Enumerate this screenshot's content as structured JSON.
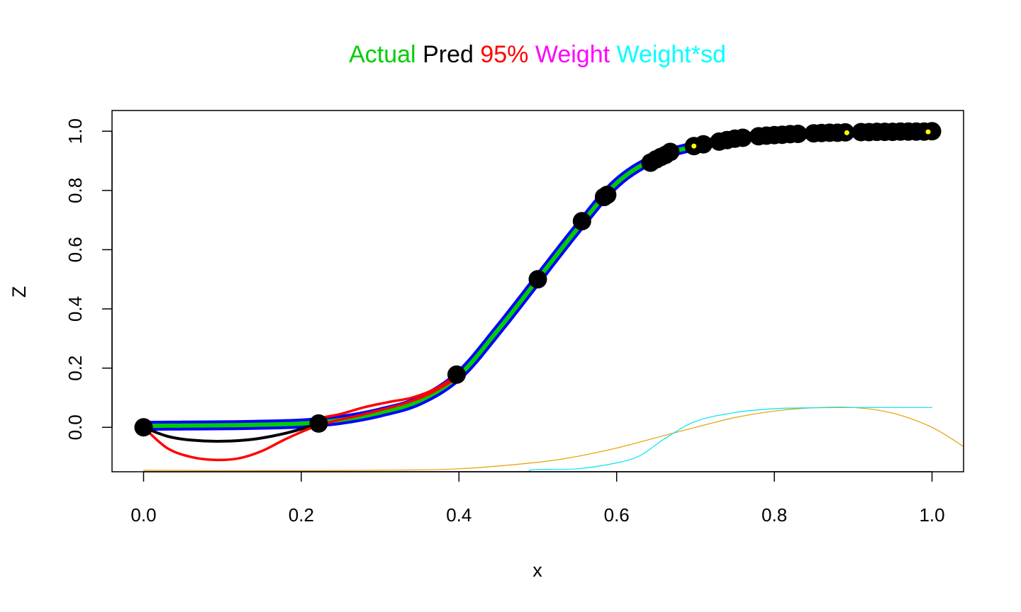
{
  "chart_data": {
    "type": "line",
    "title_parts": [
      {
        "text": "Actual",
        "color": "#00cd00"
      },
      {
        "text": "Pred",
        "color": "#000000"
      },
      {
        "text": "95%",
        "color": "#ff0000"
      },
      {
        "text": "Weight",
        "color": "#ff00ff"
      },
      {
        "text": "Weight*sd",
        "color": "#00ffff"
      }
    ],
    "xlabel": "x",
    "ylabel": "Z",
    "xlim": [
      -0.04,
      1.04
    ],
    "ylim": [
      -0.15,
      1.07
    ],
    "x_ticks": [
      0.0,
      0.2,
      0.4,
      0.6,
      0.8,
      1.0
    ],
    "x_tick_labels": [
      "0.0",
      "0.2",
      "0.4",
      "0.6",
      "0.8",
      "1.0"
    ],
    "y_ticks": [
      0.0,
      0.2,
      0.4,
      0.6,
      0.8,
      1.0
    ],
    "y_tick_labels": [
      "0.0",
      "0.2",
      "0.4",
      "0.6",
      "0.8",
      "1.0"
    ],
    "grid": false,
    "series": [
      {
        "color": "#0000ff",
        "x": [
          0,
          0.05,
          0.1,
          0.15,
          0.2,
          0.25,
          0.3,
          0.35,
          0.4,
          0.45,
          0.5,
          0.55,
          0.6,
          0.65,
          0.7,
          0.75,
          0.8,
          0.85,
          0.9,
          0.95,
          1.0
        ],
        "y": [
          0.005,
          0.006,
          0.007,
          0.009,
          0.013,
          0.025,
          0.05,
          0.09,
          0.175,
          0.33,
          0.5,
          0.67,
          0.825,
          0.91,
          0.95,
          0.975,
          0.987,
          0.991,
          0.995,
          0.997,
          0.998
        ]
      },
      {
        "color": "#00cd00",
        "x": [
          0,
          0.05,
          0.1,
          0.15,
          0.2,
          0.25,
          0.3,
          0.35,
          0.4,
          0.45,
          0.5,
          0.55,
          0.6,
          0.65,
          0.7,
          0.75,
          0.8,
          0.85,
          0.9,
          0.95,
          1.0
        ],
        "y": [
          0.005,
          0.006,
          0.007,
          0.009,
          0.013,
          0.025,
          0.05,
          0.09,
          0.175,
          0.33,
          0.5,
          0.67,
          0.825,
          0.91,
          0.95,
          0.975,
          0.987,
          0.991,
          0.995,
          0.997,
          0.998
        ]
      },
      {
        "color": "#000000",
        "x": [
          0,
          0.03,
          0.06,
          0.1,
          0.14,
          0.18,
          0.22
        ],
        "y": [
          0.0,
          -0.03,
          -0.043,
          -0.047,
          -0.04,
          -0.02,
          0.01
        ]
      },
      {
        "color": "#ff0000",
        "x": [
          0,
          0.03,
          0.06,
          0.09,
          0.12,
          0.15,
          0.18,
          0.21,
          0.24,
          0.27,
          0.3,
          0.33,
          0.36,
          0.4
        ],
        "y": [
          0.0,
          -0.07,
          -0.1,
          -0.11,
          -0.105,
          -0.08,
          -0.04,
          -0.005,
          0.02,
          0.038,
          0.058,
          0.08,
          0.11,
          0.17
        ]
      },
      {
        "color": "#ff0000",
        "x": [
          0.22,
          0.25,
          0.28,
          0.31,
          0.34,
          0.37,
          0.4
        ],
        "y": [
          0.03,
          0.045,
          0.068,
          0.085,
          0.1,
          0.13,
          0.18
        ]
      },
      {
        "color": "#e69f00",
        "x": [
          0,
          0.1,
          0.2,
          0.3,
          0.4,
          0.5,
          0.55,
          0.6,
          0.65,
          0.7,
          0.75,
          0.8,
          0.85,
          0.9,
          0.95,
          1.0,
          1.04
        ],
        "y": [
          -0.145,
          -0.146,
          -0.146,
          -0.145,
          -0.14,
          -0.118,
          -0.098,
          -0.07,
          -0.035,
          0.0,
          0.033,
          0.055,
          0.066,
          0.067,
          0.048,
          0.0,
          -0.065
        ]
      },
      {
        "color": "#00e5ee",
        "x": [
          0,
          0.1,
          0.2,
          0.3,
          0.4,
          0.48,
          0.49,
          0.5,
          0.55,
          0.6,
          0.63,
          0.66,
          0.7,
          0.75,
          0.8,
          0.85,
          0.9,
          0.95,
          1.0
        ],
        "y": [
          -0.15,
          -0.15,
          -0.15,
          -0.15,
          -0.15,
          -0.15,
          -0.145,
          -0.142,
          -0.14,
          -0.12,
          -0.095,
          -0.04,
          0.02,
          0.05,
          0.063,
          0.066,
          0.067,
          0.067,
          0.067
        ]
      }
    ],
    "points": {
      "color": "#000000",
      "x": [
        0.0,
        0.222,
        0.397,
        0.5,
        0.556,
        0.584,
        0.588,
        0.643,
        0.65,
        0.656,
        0.662,
        0.668,
        0.698,
        0.71,
        0.73,
        0.74,
        0.75,
        0.76,
        0.78,
        0.79,
        0.8,
        0.81,
        0.82,
        0.83,
        0.85,
        0.86,
        0.87,
        0.88,
        0.89,
        0.91,
        0.92,
        0.93,
        0.94,
        0.95,
        0.96,
        0.97,
        0.98,
        0.99,
        1.0
      ],
      "y": [
        0.0,
        0.013,
        0.178,
        0.5,
        0.696,
        0.778,
        0.785,
        0.894,
        0.905,
        0.913,
        0.92,
        0.93,
        0.95,
        0.956,
        0.965,
        0.97,
        0.975,
        0.978,
        0.983,
        0.985,
        0.987,
        0.988,
        0.99,
        0.991,
        0.993,
        0.994,
        0.995,
        0.995,
        0.996,
        0.997,
        0.997,
        0.998,
        0.998,
        0.998,
        0.999,
        0.999,
        0.999,
        0.999,
        1.0
      ]
    },
    "highlight_points": {
      "color": "#ffff00",
      "x": [
        0.698,
        0.892,
        0.995
      ],
      "y": [
        0.95,
        0.995,
        0.998
      ]
    }
  }
}
